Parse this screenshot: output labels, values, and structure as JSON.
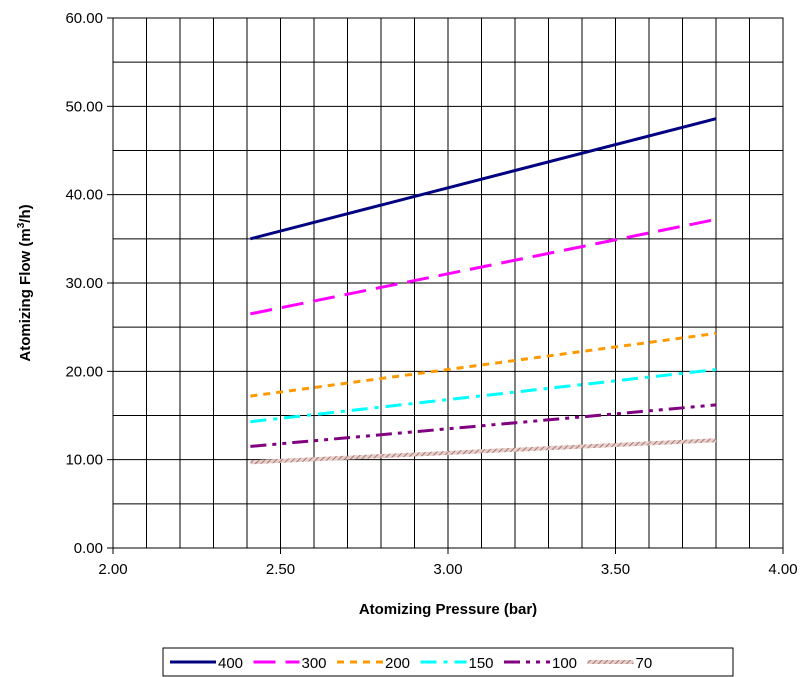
{
  "chart_data": {
    "type": "line",
    "title": "",
    "xlabel": "Atomizing Pressure (bar)",
    "ylabel": "Atomizing Flow (m3/h)",
    "ylabel_parts": {
      "before": "Atomizing Flow (m",
      "sup": "3",
      "after": "/h)"
    },
    "xlim": [
      2.0,
      4.0
    ],
    "ylim": [
      0,
      60
    ],
    "x_ticks": [
      "2.00",
      "2.50",
      "3.00",
      "3.50",
      "4.00"
    ],
    "y_ticks": [
      "0.00",
      "10.00",
      "20.00",
      "30.00",
      "40.00",
      "50.00",
      "60.00"
    ],
    "x_tick_values": [
      2.0,
      2.5,
      3.0,
      3.5,
      4.0
    ],
    "y_tick_values": [
      0,
      10,
      20,
      30,
      40,
      50,
      60
    ],
    "grid": true,
    "grid_minor_x_step": 0.1,
    "grid_minor_y_step": 5,
    "legend_position": "bottom",
    "series": [
      {
        "name": "400",
        "color": "#000080",
        "dash": "solid",
        "x": [
          2.41,
          3.8
        ],
        "y": [
          35.0,
          48.6
        ]
      },
      {
        "name": "300",
        "color": "#ff00ff",
        "dash": "long-dash",
        "x": [
          2.41,
          3.8
        ],
        "y": [
          26.5,
          37.2
        ]
      },
      {
        "name": "200",
        "color": "#ff9900",
        "dash": "short-dash",
        "x": [
          2.41,
          3.8
        ],
        "y": [
          17.2,
          24.3
        ]
      },
      {
        "name": "150",
        "color": "#00ffff",
        "dash": "dash-dot",
        "x": [
          2.41,
          3.8
        ],
        "y": [
          14.3,
          20.2
        ]
      },
      {
        "name": "100",
        "color": "#800080",
        "dash": "dash-dot-dot",
        "x": [
          2.41,
          3.8
        ],
        "y": [
          11.5,
          16.2
        ]
      },
      {
        "name": "70",
        "color": "#c0948c",
        "dash": "hatched",
        "x": [
          2.41,
          3.8
        ],
        "y": [
          9.7,
          12.2
        ]
      }
    ]
  }
}
